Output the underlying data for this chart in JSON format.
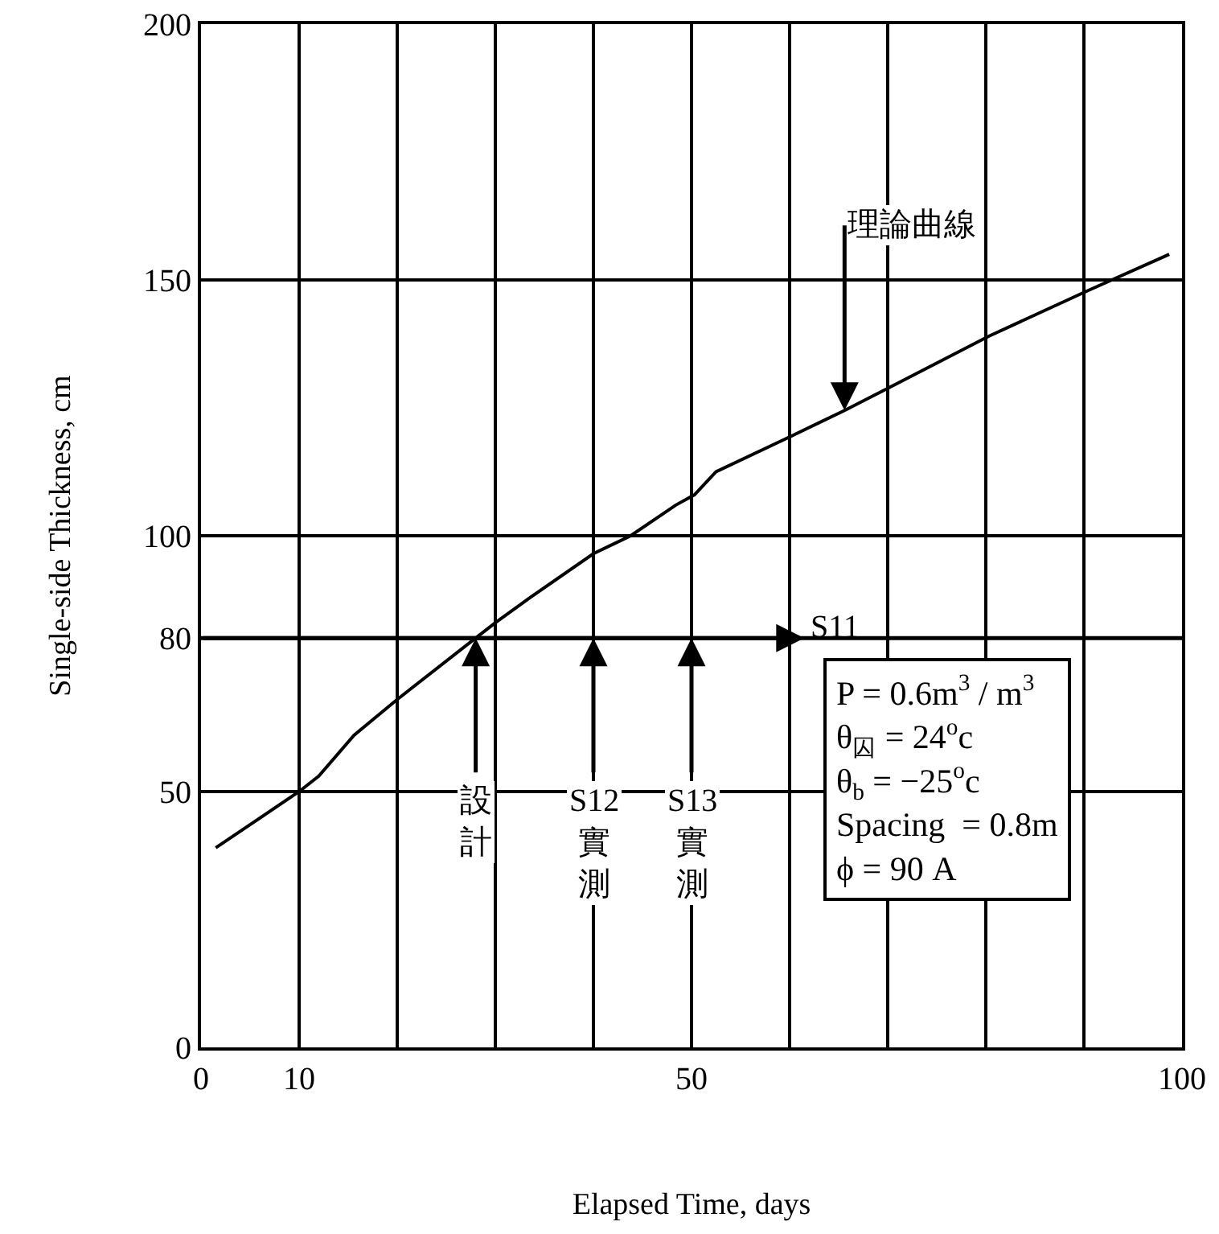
{
  "chart_data": {
    "type": "line",
    "xlabel": "Elapsed Time, days",
    "ylabel": "Single-side Thickness, cm",
    "x": [
      1.5,
      10,
      12,
      15.6,
      20,
      28,
      30,
      33.6,
      40,
      43.8,
      48.4,
      50.3,
      52.5,
      60.2,
      65.6,
      70.2,
      80.3,
      90.5,
      98.7
    ],
    "series": [
      {
        "color": "#000000",
        "values": [
          39,
          50,
          53,
          61,
          68,
          80,
          83,
          88,
          96.5,
          100,
          106,
          108,
          112.5,
          119.5,
          124.5,
          129,
          139,
          148,
          155
        ]
      }
    ],
    "xlim": [
      0,
      100
    ],
    "xticks": [
      0,
      10,
      {
        "value": 20,
        "label": null
      },
      {
        "value": 30,
        "label": null
      },
      {
        "value": 40,
        "label": null
      },
      50,
      {
        "value": 60,
        "label": null
      },
      {
        "value": 70,
        "label": null
      },
      {
        "value": 80,
        "label": null
      },
      {
        "value": 90,
        "label": null
      },
      100
    ],
    "ylim": [
      0,
      200
    ],
    "yticks": [
      0,
      50,
      80,
      100,
      150,
      200
    ],
    "grid": true,
    "marker": "none",
    "line_style": "solid",
    "ref_lines": [
      {
        "axis": "y",
        "value": 80
      }
    ],
    "annotations": [
      {
        "text": "理論曲線",
        "x": 65.6,
        "y": 124.5
      },
      {
        "text": "設計",
        "x": 28,
        "y": 80
      },
      {
        "text": "S12實測",
        "x": 40,
        "y": 80
      },
      {
        "text": "S13實測",
        "x": 50,
        "y": 80
      },
      {
        "text": "S11",
        "x": 61.5,
        "y": 80
      },
      "P = 0.6m$^{3}$ / m$^{3}$\nθ$_{囚}$ = 24$^{o}$c\nθ$_{b}$ = −25$^{o}$c\nSpacing  = 0.8m\nϕ = 90 A"
    ]
  }
}
